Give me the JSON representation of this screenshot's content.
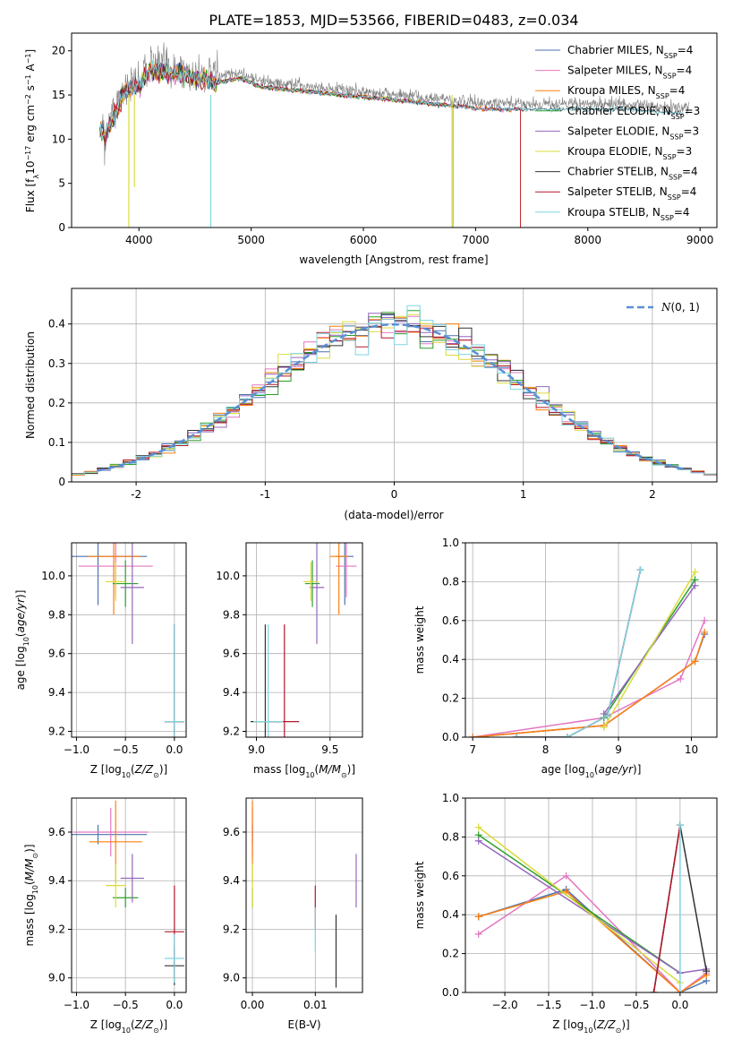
{
  "figure_title": "PLATE=1853, MJD=53566, FIBERID=0483, z=0.034",
  "model_colors": {
    "Chabrier MILES": "#4c72b0",
    "Salpeter MILES": "#e377c2",
    "Kroupa MILES": "#ff7f0e",
    "Chabrier ELODIE": "#2ca02c",
    "Salpeter ELODIE": "#9467bd",
    "Kroupa ELODIE": "#dbdb3d",
    "Chabrier STELIB": "#333333",
    "Salpeter STELIB": "#b2182b",
    "Kroupa STELIB": "#7fd6e3"
  },
  "normal_color": "#5a8fd6",
  "chart_data": [
    {
      "id": "spectrum",
      "type": "line",
      "xlabel": "wavelength [Angstrom, rest frame]",
      "ylabel": "Flux [f_λ 10^-17 erg cm^-2 s^-1 A^-1]",
      "xlim": [
        3400,
        9150
      ],
      "ylim": [
        0,
        22
      ],
      "xticks": [
        4000,
        5000,
        6000,
        7000,
        8000,
        9000
      ],
      "yticks": [
        0,
        5,
        10,
        15,
        20
      ],
      "grid": false,
      "legend_position": "top-right",
      "data_continuum": [
        [
          3650,
          11.5
        ],
        [
          3700,
          11
        ],
        [
          3800,
          14
        ],
        [
          3900,
          16.5
        ],
        [
          4000,
          16.5
        ],
        [
          4100,
          18.5
        ],
        [
          4300,
          18
        ],
        [
          4500,
          17.5
        ],
        [
          4700,
          17
        ],
        [
          4900,
          17.5
        ],
        [
          5100,
          16.5
        ],
        [
          5500,
          16
        ],
        [
          5900,
          15.5
        ],
        [
          6300,
          15
        ],
        [
          6700,
          14.5
        ],
        [
          7100,
          14
        ],
        [
          7500,
          14
        ],
        [
          7900,
          14
        ],
        [
          8300,
          14
        ],
        [
          8600,
          13.7
        ],
        [
          8900,
          13.5
        ]
      ],
      "model_end_wavelengths": [
        7400,
        7400,
        7400,
        6800,
        6800,
        6800,
        8850,
        7400,
        8850
      ],
      "series": [
        {
          "name": "Chabrier MILES",
          "n_ssp": "4"
        },
        {
          "name": "Salpeter MILES",
          "n_ssp": "4"
        },
        {
          "name": "Kroupa MILES",
          "n_ssp": "4"
        },
        {
          "name": "Chabrier ELODIE",
          "n_ssp": "3"
        },
        {
          "name": "Salpeter ELODIE",
          "n_ssp": "3"
        },
        {
          "name": "Kroupa ELODIE",
          "n_ssp": "3"
        },
        {
          "name": "Chabrier STELIB",
          "n_ssp": "4"
        },
        {
          "name": "Salpeter STELIB",
          "n_ssp": "4"
        },
        {
          "name": "Kroupa STELIB",
          "n_ssp": "4"
        }
      ]
    },
    {
      "id": "residuals",
      "type": "histogram",
      "xlabel": "(data-model)/error",
      "ylabel": "Normed distribution",
      "xlim": [
        -2.5,
        2.5
      ],
      "ylim": [
        0,
        0.49
      ],
      "xticks": [
        -2,
        -1,
        0,
        1,
        2
      ],
      "yticks": [
        0.0,
        0.1,
        0.2,
        0.3,
        0.4
      ],
      "grid": true,
      "legend_position": "top-right",
      "legend_label": "N(0,1)",
      "bin_width": 0.1,
      "bin_start": -2.5
    },
    {
      "id": "age_vs_z",
      "type": "errorbar",
      "xlabel": "Z [log10(Z/Z⊙)]",
      "ylabel": "age [log10(age/yr)]",
      "xlim": [
        -1.05,
        0.12
      ],
      "ylim": [
        9.17,
        10.17
      ],
      "xticks": [
        -1.0,
        -0.5,
        0.0
      ],
      "xtick_labels": [
        "−1.0",
        "−0.5",
        "0.0"
      ],
      "yticks": [
        9.2,
        9.4,
        9.6,
        9.8,
        10.0
      ],
      "xfmt": 1,
      "yfmt": 1,
      "grid": true,
      "points": [
        {
          "model": "Chabrier MILES",
          "x": -0.78,
          "xerr": 0.5,
          "y": 10.1,
          "yerr": 0.25
        },
        {
          "model": "Salpeter MILES",
          "x": -0.6,
          "xerr": 0.38,
          "y": 10.05,
          "yerr": 0.16
        },
        {
          "model": "Kroupa MILES",
          "x": -0.62,
          "xerr": 0.27,
          "y": 10.1,
          "yerr": 0.3
        },
        {
          "model": "Chabrier ELODIE",
          "x": -0.5,
          "xerr": 0.13,
          "y": 9.96,
          "yerr": 0.12
        },
        {
          "model": "Salpeter ELODIE",
          "x": -0.43,
          "xerr": 0.12,
          "y": 9.94,
          "yerr": 0.29
        },
        {
          "model": "Kroupa ELODIE",
          "x": -0.6,
          "xerr": 0.1,
          "y": 9.97,
          "yerr": 0.1
        },
        {
          "model": "Chabrier STELIB",
          "x": 0.0,
          "xerr": 0.1,
          "y": 9.25,
          "yerr": 0.5
        },
        {
          "model": "Salpeter STELIB",
          "x": 0.0,
          "xerr": 0.1,
          "y": 9.25,
          "yerr": 0.5
        },
        {
          "model": "Kroupa STELIB",
          "x": 0.0,
          "xerr": 0.1,
          "y": 9.25,
          "yerr": 0.5
        }
      ]
    },
    {
      "id": "age_vs_mass",
      "type": "errorbar",
      "xlabel": "mass [log10(M/M⊙)]",
      "ylabel": "",
      "xlim": [
        8.93,
        9.72
      ],
      "ylim": [
        9.17,
        10.17
      ],
      "xticks": [
        9.0,
        9.5
      ],
      "yticks": [
        9.2,
        9.4,
        9.6,
        9.8,
        10.0
      ],
      "xfmt": 1,
      "yfmt": 1,
      "grid": true,
      "points": [
        {
          "model": "Chabrier MILES",
          "x": 9.6,
          "xerr": 0.06,
          "y": 10.1,
          "yerr": 0.25
        },
        {
          "model": "Salpeter MILES",
          "x": 9.61,
          "xerr": 0.07,
          "y": 10.05,
          "yerr": 0.16
        },
        {
          "model": "Kroupa MILES",
          "x": 9.56,
          "xerr": 0.06,
          "y": 10.1,
          "yerr": 0.3
        },
        {
          "model": "Chabrier ELODIE",
          "x": 9.38,
          "xerr": 0.05,
          "y": 9.96,
          "yerr": 0.12
        },
        {
          "model": "Salpeter ELODIE",
          "x": 9.41,
          "xerr": 0.05,
          "y": 9.94,
          "yerr": 0.29
        },
        {
          "model": "Kroupa ELODIE",
          "x": 9.37,
          "xerr": 0.05,
          "y": 9.97,
          "yerr": 0.1
        },
        {
          "model": "Chabrier STELIB",
          "x": 9.06,
          "xerr": 0.1,
          "y": 9.25,
          "yerr": 0.5
        },
        {
          "model": "Salpeter STELIB",
          "x": 9.19,
          "xerr": 0.1,
          "y": 9.25,
          "yerr": 0.5
        },
        {
          "model": "Kroupa STELIB",
          "x": 9.08,
          "xerr": 0.1,
          "y": 9.25,
          "yerr": 0.5
        }
      ]
    },
    {
      "id": "weight_vs_age",
      "type": "line",
      "xlabel": "age [log10(age/yr)]",
      "ylabel": "mass weight",
      "xlim": [
        6.9,
        10.35
      ],
      "ylim": [
        0,
        1.0
      ],
      "xticks": [
        7,
        8,
        9,
        10
      ],
      "yticks": [
        0.0,
        0.2,
        0.4,
        0.6,
        0.8,
        1.0
      ],
      "xfmt": 0,
      "yfmt": 1,
      "grid": true,
      "series": [
        {
          "model": "Chabrier MILES",
          "x": [
            7.0,
            8.8,
            10.05,
            10.18
          ],
          "y": [
            0.0,
            0.06,
            0.39,
            0.53
          ]
        },
        {
          "model": "Salpeter MILES",
          "x": [
            7.0,
            8.8,
            9.85,
            10.18
          ],
          "y": [
            0.0,
            0.1,
            0.3,
            0.6
          ]
        },
        {
          "model": "Kroupa MILES",
          "x": [
            7.0,
            8.8,
            10.05,
            10.18
          ],
          "y": [
            0.0,
            0.06,
            0.39,
            0.54
          ]
        },
        {
          "model": "Chabrier ELODIE",
          "x": [
            8.8,
            10.05
          ],
          "y": [
            0.1,
            0.81
          ]
        },
        {
          "model": "Salpeter ELODIE",
          "x": [
            8.8,
            10.05
          ],
          "y": [
            0.12,
            0.78
          ]
        },
        {
          "model": "Kroupa ELODIE",
          "x": [
            8.8,
            10.05
          ],
          "y": [
            0.05,
            0.85
          ]
        },
        {
          "model": "Chabrier STELIB",
          "x": [
            7.6,
            8.3,
            8.85,
            9.3
          ],
          "y": [
            0.0,
            0.0,
            0.11,
            0.86
          ]
        },
        {
          "model": "Salpeter STELIB",
          "x": [
            7.6,
            8.3,
            8.85,
            9.3
          ],
          "y": [
            0.0,
            0.0,
            0.11,
            0.86
          ]
        },
        {
          "model": "Kroupa STELIB",
          "x": [
            7.6,
            8.3,
            8.85,
            9.3
          ],
          "y": [
            0.0,
            0.0,
            0.11,
            0.86
          ]
        }
      ]
    },
    {
      "id": "mass_vs_z",
      "type": "errorbar",
      "xlabel": "Z [log10(Z/Z⊙)]",
      "ylabel": "mass [log10(M/M⊙)]",
      "xlim": [
        -1.05,
        0.12
      ],
      "ylim": [
        8.94,
        9.74
      ],
      "xticks": [
        -1.0,
        -0.5,
        0.0
      ],
      "xtick_labels": [
        "−1.0",
        "−0.5",
        "0.0"
      ],
      "yticks": [
        9.0,
        9.2,
        9.4,
        9.6
      ],
      "xfmt": 1,
      "yfmt": 1,
      "grid": true,
      "points": [
        {
          "model": "Chabrier MILES",
          "x": -0.78,
          "xerr": 0.5,
          "y": 9.59,
          "yerr": 0.04
        },
        {
          "model": "Salpeter MILES",
          "x": -0.65,
          "xerr": 0.38,
          "y": 9.6,
          "yerr": 0.1
        },
        {
          "model": "Kroupa MILES",
          "x": -0.6,
          "xerr": 0.27,
          "y": 9.56,
          "yerr": 0.17
        },
        {
          "model": "Chabrier ELODIE",
          "x": -0.5,
          "xerr": 0.13,
          "y": 9.33,
          "yerr": 0.04
        },
        {
          "model": "Salpeter ELODIE",
          "x": -0.43,
          "xerr": 0.12,
          "y": 9.41,
          "yerr": 0.1
        },
        {
          "model": "Kroupa ELODIE",
          "x": -0.6,
          "xerr": 0.1,
          "y": 9.38,
          "yerr": 0.09
        },
        {
          "model": "Chabrier STELIB",
          "x": 0.0,
          "xerr": 0.1,
          "y": 9.05,
          "yerr": 0.08
        },
        {
          "model": "Salpeter STELIB",
          "x": 0.0,
          "xerr": 0.1,
          "y": 9.19,
          "yerr": 0.19
        },
        {
          "model": "Kroupa STELIB",
          "x": 0.0,
          "xerr": 0.1,
          "y": 9.08,
          "yerr": 0.1
        }
      ]
    },
    {
      "id": "mass_vs_ebv",
      "type": "errorbar",
      "xlabel": "E(B-V)",
      "ylabel": "",
      "xlim": [
        -0.001,
        0.0175
      ],
      "ylim": [
        8.94,
        9.74
      ],
      "xticks": [
        0.0,
        0.01
      ],
      "xtick_labels": [
        "0.00",
        "0.01"
      ],
      "yticks": [
        9.0,
        9.2,
        9.4,
        9.6
      ],
      "xfmt": 2,
      "yfmt": 1,
      "grid": true,
      "points": [
        {
          "model": "Chabrier MILES",
          "x": 0.0,
          "xerr": 0.0,
          "y": 9.59,
          "yerr": 0.04
        },
        {
          "model": "Salpeter MILES",
          "x": 0.0,
          "xerr": 0.0,
          "y": 9.6,
          "yerr": 0.1
        },
        {
          "model": "Kroupa MILES",
          "x": 0.0,
          "xerr": 0.0,
          "y": 9.56,
          "yerr": 0.17
        },
        {
          "model": "Chabrier ELODIE",
          "x": 0.0,
          "xerr": 0.0,
          "y": 9.33,
          "yerr": 0.04
        },
        {
          "model": "Salpeter ELODIE",
          "x": 0.0165,
          "xerr": 0.0,
          "y": 9.4,
          "yerr": 0.11
        },
        {
          "model": "Kroupa ELODIE",
          "x": 0.0,
          "xerr": 0.0,
          "y": 9.38,
          "yerr": 0.09
        },
        {
          "model": "Chabrier STELIB",
          "x": 0.0133,
          "xerr": 0.0,
          "y": 9.11,
          "yerr": 0.15
        },
        {
          "model": "Salpeter STELIB",
          "x": 0.01,
          "xerr": 0.0,
          "y": 9.29,
          "yerr": 0.09
        },
        {
          "model": "Kroupa STELIB",
          "x": 0.01,
          "xerr": 0.0,
          "y": 9.2,
          "yerr": 0.09
        }
      ]
    },
    {
      "id": "weight_vs_z",
      "type": "line",
      "xlabel": "Z [log10(Z/Z⊙)]",
      "ylabel": "mass weight",
      "xlim": [
        -2.45,
        0.42
      ],
      "ylim": [
        0,
        1.0
      ],
      "xticks": [
        -2.0,
        -1.5,
        -1.0,
        -0.5,
        0.0
      ],
      "xtick_labels": [
        "−2.0",
        "−1.5",
        "−1.0",
        "−0.5",
        "0.0"
      ],
      "yticks": [
        0.0,
        0.2,
        0.4,
        0.6,
        0.8,
        1.0
      ],
      "xfmt": 1,
      "yfmt": 1,
      "grid": true,
      "series": [
        {
          "model": "Chabrier MILES",
          "x": [
            -2.3,
            -1.3,
            0.0,
            0.3
          ],
          "y": [
            0.39,
            0.53,
            0.0,
            0.06
          ]
        },
        {
          "model": "Salpeter MILES",
          "x": [
            -2.3,
            -1.3,
            0.0,
            0.3
          ],
          "y": [
            0.3,
            0.6,
            0.0,
            0.1
          ]
        },
        {
          "model": "Kroupa MILES",
          "x": [
            -2.3,
            -1.3,
            0.0,
            0.3
          ],
          "y": [
            0.39,
            0.52,
            0.0,
            0.09
          ]
        },
        {
          "model": "Chabrier ELODIE",
          "x": [
            -2.3,
            0.0
          ],
          "y": [
            0.81,
            0.1
          ]
        },
        {
          "model": "Salpeter ELODIE",
          "x": [
            -2.3,
            0.0,
            0.3
          ],
          "y": [
            0.78,
            0.1,
            0.12
          ]
        },
        {
          "model": "Kroupa ELODIE",
          "x": [
            -2.3,
            0.0
          ],
          "y": [
            0.85,
            0.05
          ]
        },
        {
          "model": "Chabrier STELIB",
          "x": [
            -0.3,
            0.0,
            0.3
          ],
          "y": [
            0.0,
            0.86,
            0.11
          ]
        },
        {
          "model": "Salpeter STELIB",
          "x": [
            -0.3,
            0.0
          ],
          "y": [
            0.0,
            0.86
          ]
        },
        {
          "model": "Kroupa STELIB",
          "x": [
            0.0,
            0.0
          ],
          "y": [
            0.0,
            0.86
          ]
        }
      ]
    }
  ]
}
